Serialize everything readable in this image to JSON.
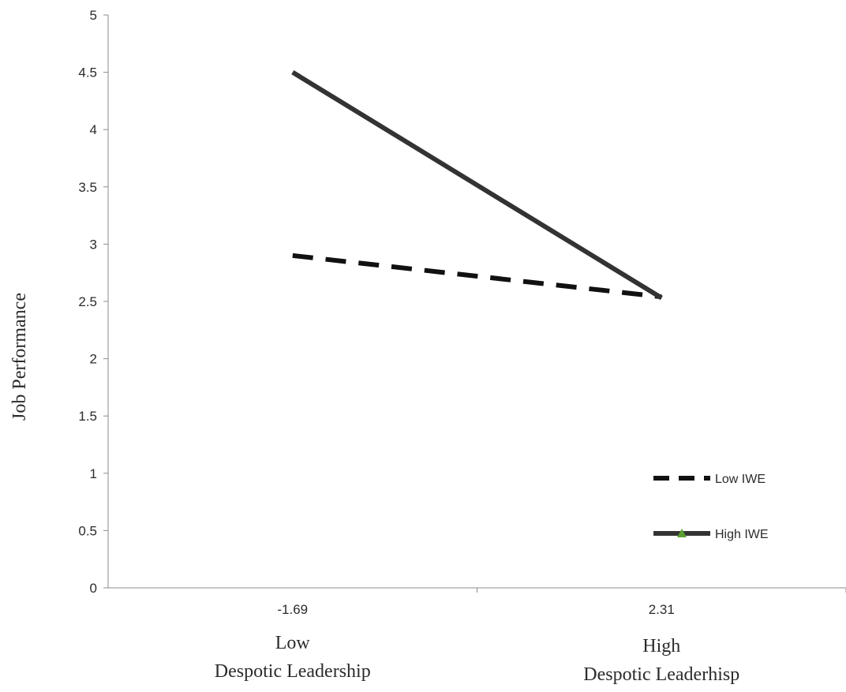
{
  "chart_data": {
    "type": "line",
    "title": "",
    "xlabel": "",
    "ylabel": "Job Performance",
    "ylim": [
      0,
      5
    ],
    "yticks": [
      "0",
      "0.5",
      "1",
      "1.5",
      "2",
      "2.5",
      "3",
      "3.5",
      "4",
      "4.5",
      "5"
    ],
    "categories": [
      "-1.69",
      "2.31"
    ],
    "category_labels": [
      [
        "Low",
        "Despotic Leadership"
      ],
      [
        "High",
        "Despotic Leaderhisp"
      ]
    ],
    "series": [
      {
        "name": "Low IWE",
        "values": [
          2.9,
          2.54
        ],
        "style": "dashed",
        "color": "#111111"
      },
      {
        "name": "High IWE",
        "values": [
          4.5,
          2.53
        ],
        "style": "solid",
        "color": "#333333",
        "marker_color": "#5a9e2f"
      }
    ],
    "grid": false,
    "legend_position": "bottom-right"
  }
}
